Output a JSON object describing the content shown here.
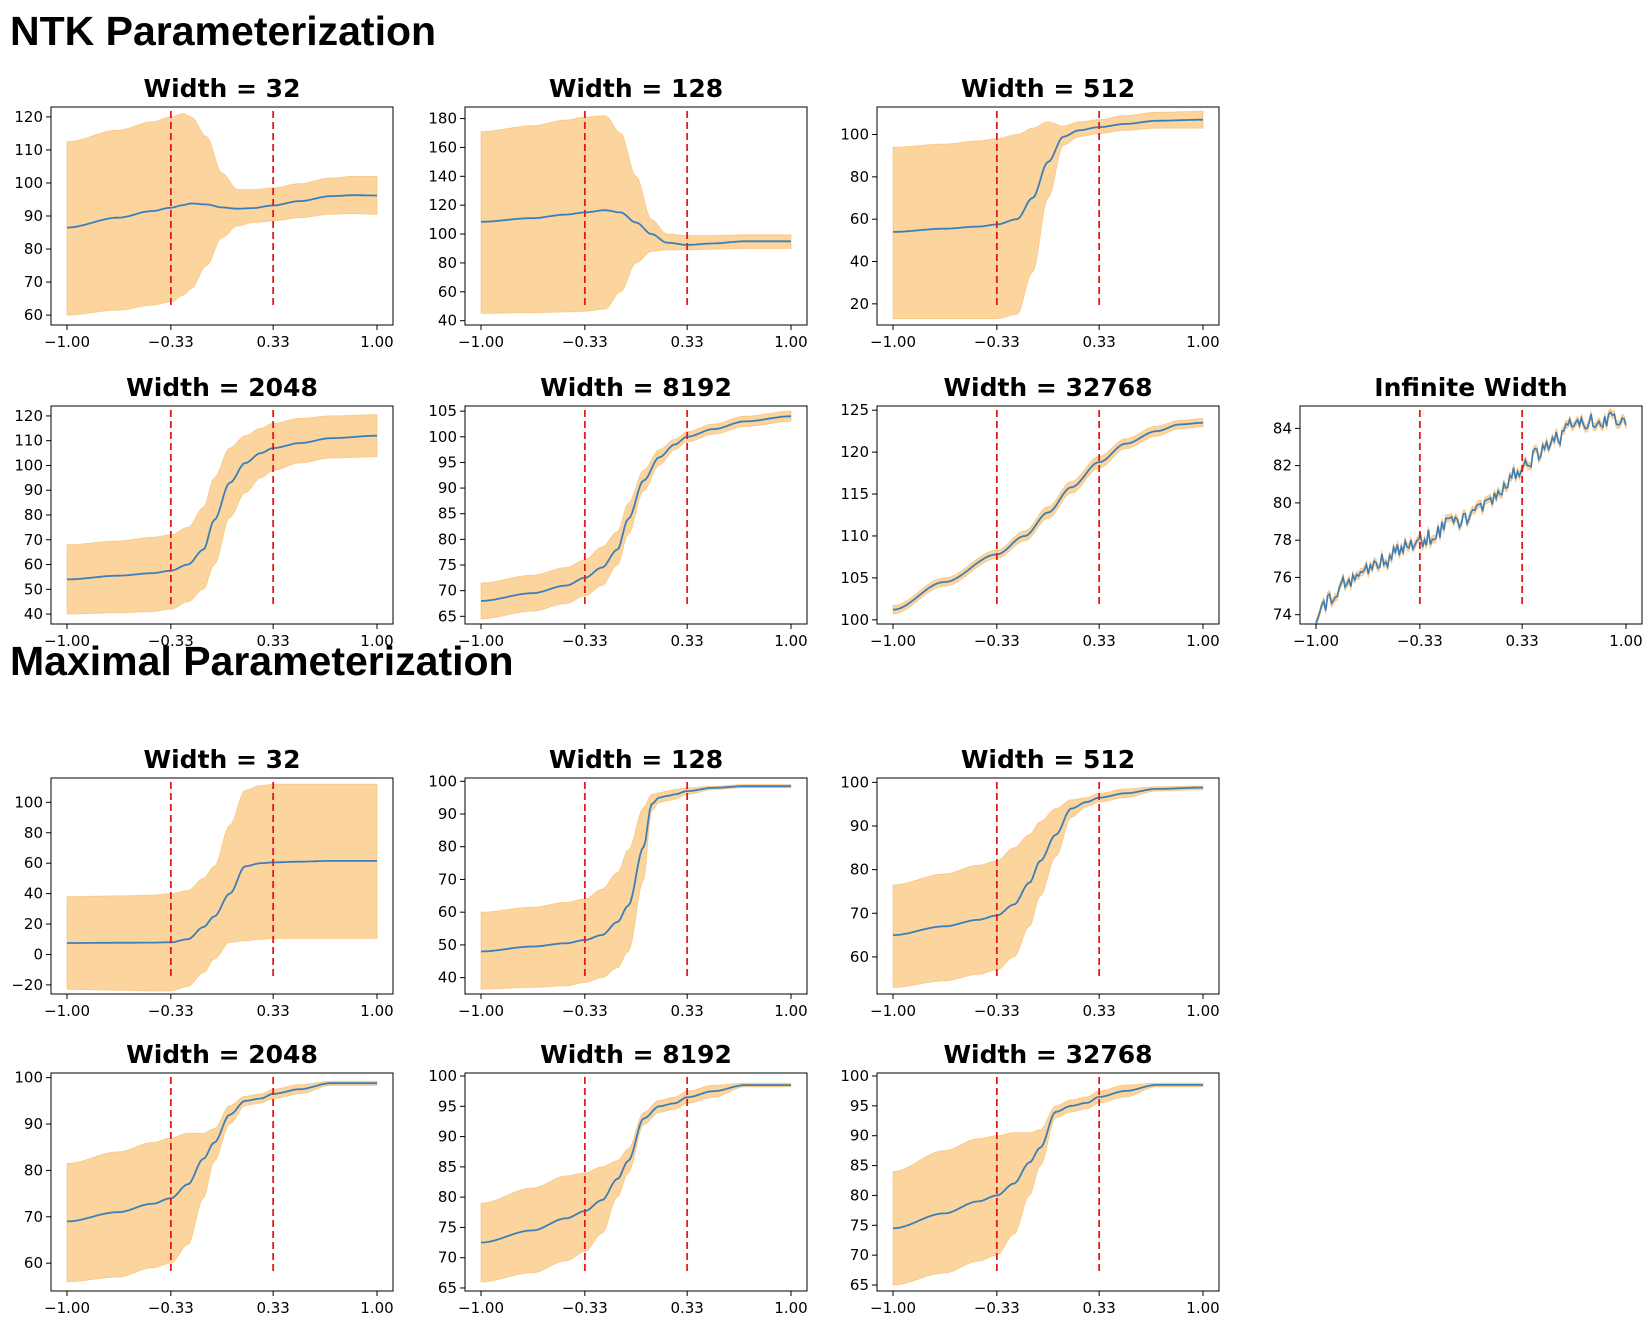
{
  "sections": [
    {
      "title": "NTK Parameterization"
    },
    {
      "title": "Maximal Parameterization"
    }
  ],
  "colors": {
    "line": "#3a7fba",
    "band": "#fcd59e",
    "band_edge": "#f6b45c",
    "vline": "#e31a1c"
  },
  "chart_data": [
    {
      "section": 0,
      "title": "Width = 32",
      "type": "line",
      "x_ticks": [
        "−1.00",
        "−0.33",
        "0.33",
        "1.00"
      ],
      "ylim": [
        57,
        123
      ],
      "y_ticks": [
        60,
        70,
        80,
        90,
        100,
        110,
        120
      ],
      "vlines": [
        -0.33,
        0.33
      ],
      "x": [
        -1,
        -0.67,
        -0.45,
        -0.33,
        -0.25,
        -0.2,
        -0.1,
        0.0,
        0.1,
        0.2,
        0.33,
        0.5,
        0.7,
        0.85,
        1.0
      ],
      "mean": [
        86.5,
        89.5,
        91.5,
        92.5,
        93.3,
        93.8,
        93.5,
        92.6,
        92.2,
        92.4,
        93.2,
        94.5,
        96.0,
        96.3,
        96.2
      ],
      "upper": [
        112.5,
        116.0,
        118.5,
        120.0,
        121.0,
        120.0,
        114.0,
        103.0,
        98.0,
        98.0,
        98.5,
        99.8,
        101.5,
        102.0,
        102.0
      ],
      "lower": [
        60.0,
        61.5,
        63.0,
        64.0,
        66.0,
        68.0,
        75.0,
        83.5,
        87.0,
        88.0,
        88.5,
        89.5,
        90.5,
        90.7,
        90.5
      ]
    },
    {
      "section": 0,
      "title": "Width = 128",
      "type": "line",
      "x_ticks": [
        "−1.00",
        "−0.33",
        "0.33",
        "1.00"
      ],
      "ylim": [
        37,
        188
      ],
      "y_ticks": [
        40,
        60,
        80,
        100,
        120,
        140,
        160,
        180
      ],
      "vlines": [
        -0.33,
        0.33
      ],
      "x": [
        -1,
        -0.67,
        -0.45,
        -0.33,
        -0.2,
        -0.1,
        0.0,
        0.1,
        0.2,
        0.33,
        0.5,
        0.7,
        1.0
      ],
      "mean": [
        108.5,
        111.0,
        113.5,
        115.0,
        116.5,
        115.0,
        108.0,
        100.0,
        94.0,
        92.5,
        93.5,
        95.0,
        95.0
      ],
      "upper": [
        171.0,
        175.0,
        179.0,
        181.0,
        182.0,
        170.0,
        140.0,
        110.0,
        100.0,
        99.0,
        99.0,
        99.5,
        99.5
      ],
      "lower": [
        45.0,
        45.5,
        46.0,
        46.5,
        48.0,
        60.0,
        80.0,
        88.0,
        89.0,
        89.0,
        89.5,
        90.0,
        90.0
      ]
    },
    {
      "section": 0,
      "title": "Width = 512",
      "type": "line",
      "x_ticks": [
        "−1.00",
        "−0.33",
        "0.33",
        "1.00"
      ],
      "ylim": [
        10,
        113
      ],
      "y_ticks": [
        20,
        40,
        60,
        80,
        100
      ],
      "vlines": [
        -0.33,
        0.33
      ],
      "x": [
        -1,
        -0.67,
        -0.45,
        -0.33,
        -0.2,
        -0.1,
        0.0,
        0.1,
        0.2,
        0.33,
        0.5,
        0.7,
        1.0
      ],
      "mean": [
        54.0,
        55.5,
        56.5,
        57.5,
        60.0,
        70.0,
        87.0,
        99.0,
        102.0,
        103.5,
        105.0,
        106.5,
        107.0
      ],
      "upper": [
        94.0,
        95.5,
        97.0,
        98.0,
        100.0,
        103.0,
        106.0,
        104.0,
        106.0,
        107.0,
        109.0,
        110.5,
        111.0
      ],
      "lower": [
        13.0,
        13.0,
        13.0,
        13.0,
        15.0,
        35.0,
        70.0,
        95.0,
        99.0,
        100.5,
        102.0,
        103.0,
        103.0
      ]
    },
    {
      "section": 0,
      "title": "Width = 2048",
      "type": "line",
      "x_ticks": [
        "−1.00",
        "−0.33",
        "0.33",
        "1.00"
      ],
      "ylim": [
        36,
        124
      ],
      "y_ticks": [
        40,
        50,
        60,
        70,
        80,
        90,
        100,
        110,
        120
      ],
      "vlines": [
        -0.33,
        0.33
      ],
      "x": [
        -1,
        -0.67,
        -0.45,
        -0.33,
        -0.22,
        -0.12,
        -0.05,
        0.05,
        0.15,
        0.25,
        0.33,
        0.5,
        0.7,
        1.0
      ],
      "mean": [
        54.0,
        55.5,
        56.5,
        57.5,
        60.0,
        66.0,
        78.0,
        93.0,
        101.0,
        105.0,
        107.0,
        109.0,
        111.0,
        112.0
      ],
      "upper": [
        68.0,
        69.5,
        71.0,
        72.0,
        75.0,
        83.0,
        95.0,
        107.0,
        112.0,
        115.0,
        117.0,
        119.0,
        120.0,
        120.5
      ],
      "lower": [
        40.0,
        40.5,
        41.0,
        42.0,
        45.0,
        50.0,
        60.0,
        79.0,
        89.0,
        95.0,
        98.0,
        101.0,
        103.0,
        103.5
      ]
    },
    {
      "section": 0,
      "title": "Width = 8192",
      "type": "line",
      "x_ticks": [
        "−1.00",
        "−0.33",
        "0.33",
        "1.00"
      ],
      "ylim": [
        63.5,
        106
      ],
      "y_ticks": [
        65,
        70,
        75,
        80,
        85,
        90,
        95,
        100,
        105
      ],
      "vlines": [
        -0.33,
        0.33
      ],
      "x": [
        -1,
        -0.67,
        -0.45,
        -0.33,
        -0.22,
        -0.12,
        -0.05,
        0.05,
        0.15,
        0.25,
        0.33,
        0.5,
        0.7,
        1.0
      ],
      "mean": [
        68.0,
        69.5,
        71.0,
        72.5,
        74.5,
        78.0,
        84.0,
        91.5,
        96.0,
        98.5,
        100.0,
        101.5,
        103.0,
        104.0
      ],
      "upper": [
        71.5,
        73.0,
        74.5,
        76.0,
        78.5,
        81.5,
        87.0,
        93.5,
        97.5,
        99.5,
        101.0,
        102.5,
        104.0,
        105.0
      ],
      "lower": [
        64.5,
        66.0,
        67.5,
        69.0,
        71.0,
        75.0,
        81.0,
        89.5,
        94.5,
        97.5,
        99.0,
        100.5,
        102.0,
        103.0
      ]
    },
    {
      "section": 0,
      "title": "Width = 32768",
      "type": "line",
      "x_ticks": [
        "−1.00",
        "−0.33",
        "0.33",
        "1.00"
      ],
      "ylim": [
        99.5,
        125.5
      ],
      "y_ticks": [
        100,
        105,
        110,
        115,
        120,
        125
      ],
      "vlines": [
        -0.33,
        0.33
      ],
      "x": [
        -1,
        -0.67,
        -0.33,
        -0.15,
        0.0,
        0.15,
        0.33,
        0.5,
        0.7,
        0.85,
        1.0
      ],
      "mean": [
        101.2,
        104.5,
        107.8,
        110.0,
        112.8,
        115.8,
        118.8,
        121.0,
        122.5,
        123.3,
        123.5
      ],
      "upper": [
        101.7,
        105.0,
        108.3,
        110.6,
        113.5,
        116.5,
        119.5,
        121.6,
        123.1,
        123.8,
        124.0
      ],
      "lower": [
        100.7,
        104.0,
        107.3,
        109.4,
        112.1,
        115.1,
        118.1,
        120.4,
        121.9,
        122.8,
        123.0
      ]
    },
    {
      "section": 0,
      "title": "Infinite Width",
      "type": "line",
      "noisy": true,
      "x_ticks": [
        "−1.00",
        "−0.33",
        "0.33",
        "1.00"
      ],
      "ylim": [
        73.5,
        85.2
      ],
      "y_ticks": [
        74,
        76,
        78,
        80,
        82,
        84
      ],
      "vlines": [
        -0.33,
        0.33
      ],
      "x": [
        -1,
        -0.8,
        -0.6,
        -0.33,
        -0.1,
        0.1,
        0.33,
        0.5,
        0.7,
        0.85,
        1.0
      ],
      "mean": [
        74.0,
        75.8,
        76.8,
        78.0,
        78.9,
        80.0,
        81.8,
        83.2,
        84.3,
        84.5,
        84.2
      ],
      "upper": [
        74.2,
        76.0,
        77.0,
        78.2,
        79.1,
        80.2,
        82.0,
        83.4,
        84.5,
        84.7,
        84.4
      ],
      "lower": [
        73.8,
        75.6,
        76.6,
        77.8,
        78.7,
        79.8,
        81.6,
        83.0,
        84.1,
        84.3,
        84.0
      ]
    },
    {
      "section": 1,
      "title": "Width = 32",
      "type": "line",
      "x_ticks": [
        "−1.00",
        "−0.33",
        "0.33",
        "1.00"
      ],
      "ylim": [
        -26,
        116
      ],
      "y_ticks": [
        -20,
        0,
        20,
        40,
        60,
        80,
        100
      ],
      "vlines": [
        -0.33,
        0.33
      ],
      "x": [
        -1,
        -0.67,
        -0.45,
        -0.33,
        -0.22,
        -0.12,
        -0.05,
        0.05,
        0.15,
        0.25,
        0.33,
        0.5,
        0.7,
        1.0
      ],
      "mean": [
        7.5,
        7.7,
        7.8,
        8.0,
        10.0,
        18.0,
        25.0,
        40.0,
        58.0,
        60.0,
        60.5,
        61.0,
        61.5,
        61.5
      ],
      "upper": [
        38.0,
        38.5,
        39.0,
        40.0,
        42.0,
        50.0,
        58.0,
        85.0,
        108.0,
        111.0,
        112.0,
        112.0,
        112.0,
        112.0
      ],
      "lower": [
        -23.0,
        -23.5,
        -24.0,
        -24.0,
        -21.0,
        -12.0,
        -3.0,
        8.0,
        9.0,
        10.0,
        10.5,
        10.5,
        10.5,
        10.5
      ]
    },
    {
      "section": 1,
      "title": "Width = 128",
      "type": "line",
      "x_ticks": [
        "−1.00",
        "−0.33",
        "0.33",
        "1.00"
      ],
      "ylim": [
        35,
        101
      ],
      "y_ticks": [
        40,
        50,
        60,
        70,
        80,
        90,
        100
      ],
      "vlines": [
        -0.33,
        0.33
      ],
      "x": [
        -1,
        -0.67,
        -0.45,
        -0.33,
        -0.22,
        -0.12,
        -0.05,
        0.05,
        0.1,
        0.15,
        0.2,
        0.25,
        0.33,
        0.5,
        0.7,
        1.0
      ],
      "mean": [
        48.0,
        49.5,
        50.5,
        51.5,
        53.0,
        57.0,
        62.0,
        80.0,
        93.0,
        95.0,
        95.5,
        96.0,
        97.0,
        98.0,
        98.5,
        98.5
      ],
      "upper": [
        60.0,
        61.5,
        63.0,
        64.0,
        67.0,
        72.0,
        79.0,
        92.0,
        96.0,
        96.5,
        97.0,
        97.5,
        98.0,
        98.5,
        99.0,
        99.0
      ],
      "lower": [
        36.5,
        37.0,
        37.5,
        38.5,
        40.0,
        43.0,
        48.0,
        70.0,
        91.0,
        93.5,
        94.0,
        94.5,
        96.0,
        97.5,
        98.0,
        98.0
      ]
    },
    {
      "section": 1,
      "title": "Width = 512",
      "type": "line",
      "x_ticks": [
        "−1.00",
        "−0.33",
        "0.33",
        "1.00"
      ],
      "ylim": [
        51.5,
        101
      ],
      "y_ticks": [
        60,
        70,
        80,
        90,
        100
      ],
      "vlines": [
        -0.33,
        0.33
      ],
      "x": [
        -1,
        -0.67,
        -0.45,
        -0.33,
        -0.22,
        -0.12,
        -0.05,
        0.05,
        0.15,
        0.25,
        0.33,
        0.5,
        0.7,
        1.0
      ],
      "mean": [
        65.0,
        67.0,
        68.5,
        69.5,
        72.0,
        77.0,
        82.0,
        88.0,
        94.0,
        95.5,
        96.5,
        97.5,
        98.5,
        98.8
      ],
      "upper": [
        76.5,
        79.0,
        81.0,
        82.0,
        85.0,
        88.0,
        91.0,
        94.0,
        96.0,
        96.5,
        97.5,
        98.5,
        99.0,
        99.2
      ],
      "lower": [
        53.0,
        54.5,
        56.0,
        57.0,
        60.0,
        67.0,
        74.0,
        83.0,
        92.0,
        94.5,
        95.5,
        96.5,
        98.0,
        98.3
      ]
    },
    {
      "section": 1,
      "title": "Width = 2048",
      "type": "line",
      "x_ticks": [
        "−1.00",
        "−0.33",
        "0.33",
        "1.00"
      ],
      "ylim": [
        54,
        101
      ],
      "y_ticks": [
        60,
        70,
        80,
        90,
        100
      ],
      "vlines": [
        -0.33,
        0.33
      ],
      "x": [
        -1,
        -0.67,
        -0.45,
        -0.33,
        -0.22,
        -0.12,
        -0.05,
        0.05,
        0.15,
        0.25,
        0.33,
        0.5,
        0.7,
        1.0
      ],
      "mean": [
        69.0,
        71.0,
        72.8,
        74.0,
        77.0,
        82.5,
        86.0,
        92.0,
        95.0,
        95.5,
        96.5,
        97.5,
        98.8,
        98.8
      ],
      "upper": [
        81.5,
        84.0,
        86.0,
        87.0,
        88.0,
        88.0,
        89.0,
        94.0,
        96.0,
        96.5,
        97.5,
        98.5,
        99.2,
        99.2
      ],
      "lower": [
        56.0,
        57.0,
        59.0,
        60.0,
        64.0,
        74.0,
        82.0,
        90.0,
        94.0,
        94.5,
        95.5,
        96.5,
        98.3,
        98.3
      ]
    },
    {
      "section": 1,
      "title": "Width = 8192",
      "type": "line",
      "x_ticks": [
        "−1.00",
        "−0.33",
        "0.33",
        "1.00"
      ],
      "ylim": [
        64.5,
        100.5
      ],
      "y_ticks": [
        65,
        70,
        75,
        80,
        85,
        90,
        95,
        100
      ],
      "vlines": [
        -0.33,
        0.33
      ],
      "x": [
        -1,
        -0.67,
        -0.45,
        -0.33,
        -0.22,
        -0.12,
        -0.05,
        0.05,
        0.15,
        0.25,
        0.33,
        0.5,
        0.7,
        1.0
      ],
      "mean": [
        72.5,
        74.5,
        76.5,
        77.7,
        79.5,
        83.0,
        86.0,
        93.0,
        95.0,
        95.5,
        96.5,
        97.5,
        98.5,
        98.5
      ],
      "upper": [
        79.0,
        81.5,
        83.5,
        84.0,
        85.0,
        86.0,
        88.0,
        94.0,
        96.0,
        96.5,
        97.5,
        98.5,
        98.8,
        98.8
      ],
      "lower": [
        66.0,
        67.5,
        69.5,
        71.0,
        74.0,
        80.0,
        84.0,
        92.0,
        94.0,
        94.5,
        95.5,
        96.5,
        98.2,
        98.2
      ]
    },
    {
      "section": 1,
      "title": "Width = 32768",
      "type": "line",
      "x_ticks": [
        "−1.00",
        "−0.33",
        "0.33",
        "1.00"
      ],
      "ylim": [
        64,
        100.5
      ],
      "y_ticks": [
        65,
        70,
        75,
        80,
        85,
        90,
        95,
        100
      ],
      "vlines": [
        -0.33,
        0.33
      ],
      "x": [
        -1,
        -0.67,
        -0.45,
        -0.33,
        -0.22,
        -0.12,
        -0.05,
        0.05,
        0.15,
        0.25,
        0.33,
        0.5,
        0.7,
        1.0
      ],
      "mean": [
        74.5,
        77.0,
        79.0,
        80.0,
        82.0,
        85.5,
        88.0,
        94.0,
        95.0,
        95.5,
        96.5,
        97.5,
        98.5,
        98.5
      ],
      "upper": [
        84.0,
        87.5,
        89.5,
        90.0,
        90.5,
        90.5,
        91.0,
        95.0,
        96.0,
        96.5,
        97.5,
        98.5,
        98.8,
        98.8
      ],
      "lower": [
        65.0,
        67.0,
        69.0,
        70.0,
        73.5,
        80.0,
        85.0,
        93.0,
        94.0,
        94.5,
        95.5,
        96.5,
        98.2,
        98.2
      ]
    }
  ]
}
